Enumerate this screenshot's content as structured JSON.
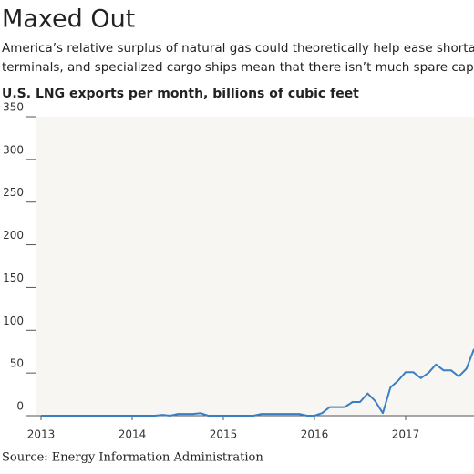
{
  "chart_data": {
    "type": "line",
    "title": "Maxed Out",
    "subtitle": [
      "America’s relative surplus of natural gas could theoretically help ease shortag",
      "terminals, and specialized cargo ships mean that there isn’t much spare capa"
    ],
    "chart_label": "U.S. LNG exports per month, billions of cubic feet",
    "source": "Source: Energy Information Administration",
    "x": [
      2013,
      2013.083,
      2013.167,
      2013.25,
      2013.333,
      2013.417,
      2013.5,
      2013.583,
      2013.667,
      2013.75,
      2013.833,
      2013.917,
      2014,
      2014.083,
      2014.167,
      2014.25,
      2014.333,
      2014.417,
      2014.5,
      2014.583,
      2014.667,
      2014.75,
      2014.833,
      2014.917,
      2015,
      2015.083,
      2015.167,
      2015.25,
      2015.333,
      2015.417,
      2015.5,
      2015.583,
      2015.667,
      2015.75,
      2015.833,
      2015.917,
      2016,
      2016.083,
      2016.167,
      2016.25,
      2016.333,
      2016.417,
      2016.5,
      2016.583,
      2016.667,
      2016.75,
      2016.833,
      2016.917,
      2017,
      2017.083,
      2017.167,
      2017.25,
      2017.333,
      2017.417,
      2017.5,
      2017.583,
      2017.667,
      2017.75
    ],
    "series": [
      {
        "color": "#3a7fc1",
        "values": [
          0,
          0,
          0,
          0,
          0,
          0,
          0,
          0,
          0,
          0,
          0,
          0,
          0,
          0,
          0,
          0,
          1,
          0,
          2,
          2,
          2,
          3,
          0,
          0,
          0,
          0,
          0,
          0,
          0,
          2,
          2,
          2,
          2,
          2,
          2,
          0,
          0,
          3,
          10,
          10,
          10,
          16,
          16,
          26,
          17,
          3,
          33,
          41,
          51,
          51,
          44,
          50,
          60,
          53,
          53,
          46,
          55,
          78
        ]
      }
    ],
    "xlim": [
      2012.95,
      2017.75
    ],
    "xticks": [
      2013,
      2014,
      2015,
      2016,
      2017
    ],
    "ylim": [
      0,
      350
    ],
    "yticks": [
      0,
      50,
      100,
      150,
      200,
      250,
      300,
      350
    ],
    "background": "#f8f6f3"
  }
}
